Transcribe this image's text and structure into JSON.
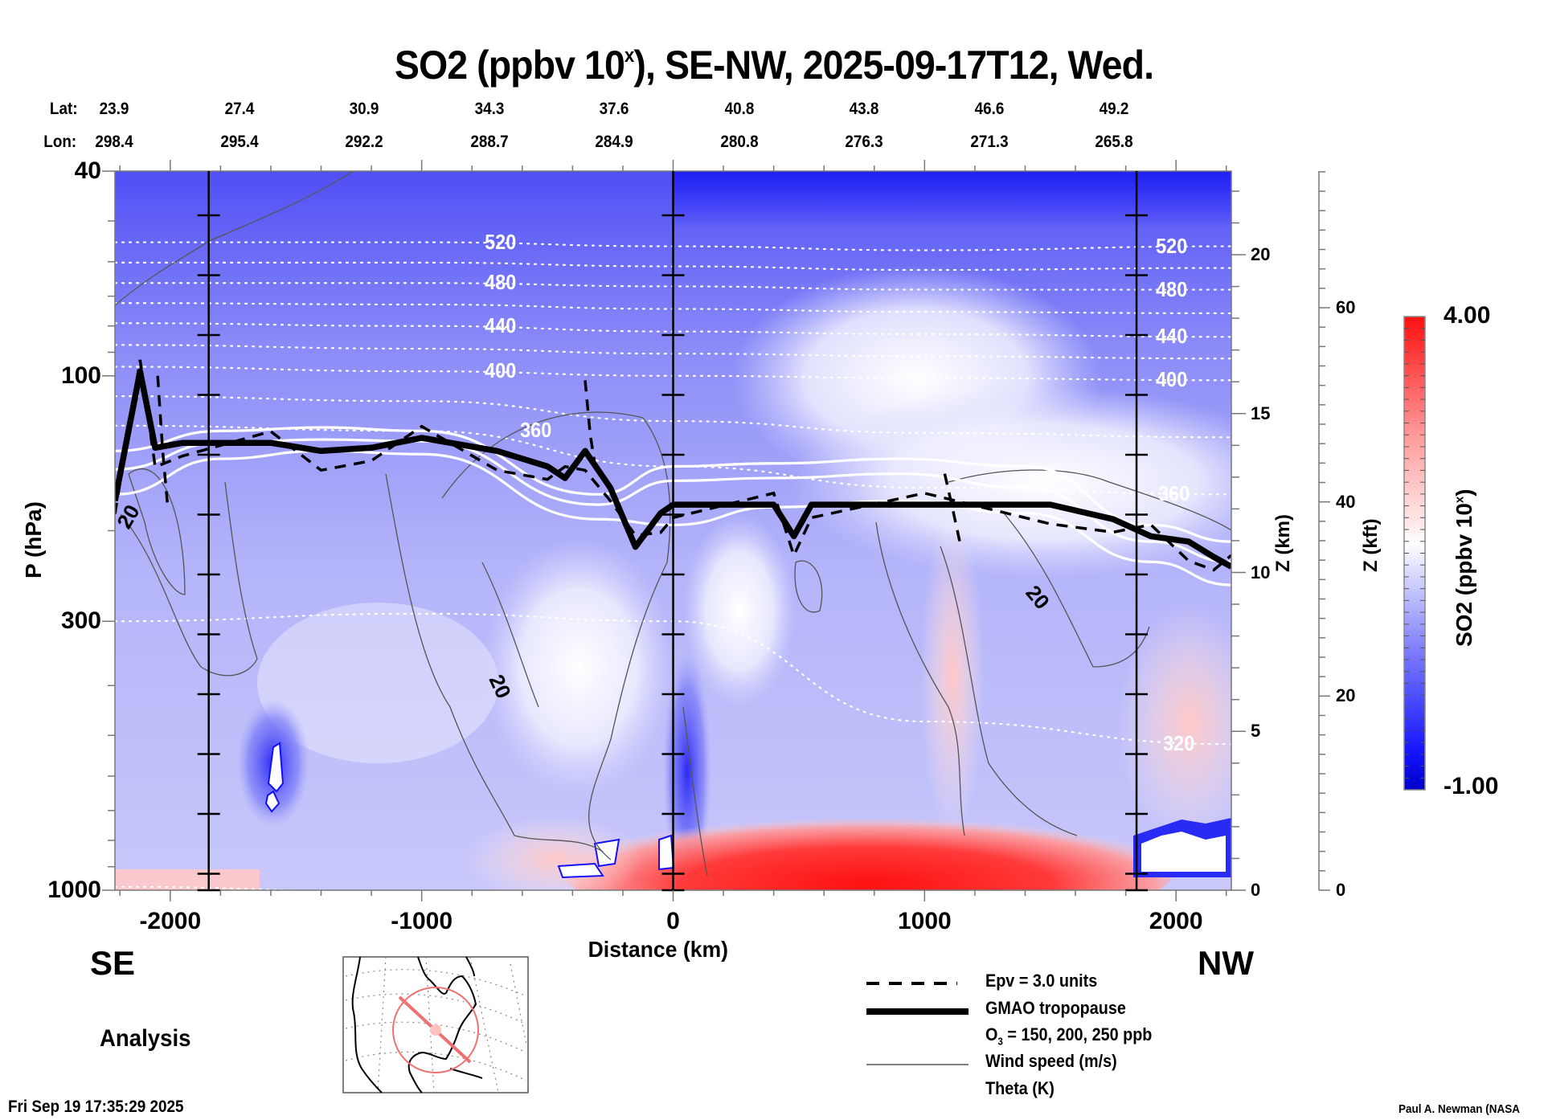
{
  "chart_data": {
    "type": "heatmap",
    "title": "SO2 (ppbv 10",
    "title_sup": "x",
    "title_rest": "), SE-NW, 2025-09-17T12, Wed.",
    "variable": "SO2",
    "units": "ppbv 10^x",
    "section": "SE-NW",
    "valid_time": "2025-09-17T12",
    "weekday": "Wed.",
    "xlabel": "Distance (km)",
    "ylabel": "P (hPa)",
    "y2label": "Z (km)",
    "y3label": "Z (kft)",
    "xlim": [
      -2220,
      2220
    ],
    "ylim": [
      1000,
      40
    ],
    "yscale": "log",
    "x_ticks": [
      -2000,
      -1000,
      0,
      1000,
      2000
    ],
    "x_tick_labels": [
      "-2000",
      "-1000",
      "0",
      "1000",
      "2000"
    ],
    "p_ticks": [
      40,
      100,
      300,
      1000
    ],
    "p_tick_labels": [
      "40",
      "100",
      "300",
      "1000"
    ],
    "z_km_ticks": [
      0,
      5,
      10,
      15,
      20
    ],
    "z_km_labels": [
      "0",
      "5",
      "10",
      "15",
      "20"
    ],
    "z_kft_ticks": [
      0,
      20,
      40,
      60
    ],
    "z_kft_labels": [
      "0",
      "20",
      "40",
      "60"
    ],
    "marker_lines_km": [
      -1847,
      0,
      1843
    ],
    "lat_label": "Lat:",
    "lon_label": "Lon:",
    "latitudes": [
      "23.9",
      "27.4",
      "30.9",
      "34.3",
      "37.6",
      "40.8",
      "43.8",
      "46.6",
      "49.2"
    ],
    "longitudes": [
      "298.4",
      "295.4",
      "292.2",
      "288.7",
      "284.9",
      "280.8",
      "276.3",
      "271.3",
      "265.8"
    ],
    "colorbar": {
      "label": "SO2 (ppbv 10",
      "label_sup": "x",
      "label_end": ")",
      "min": -1.0,
      "max": 4.0,
      "min_label": "-1.00",
      "max_label": "4.00",
      "levels": 40,
      "colors": [
        "#0000cc",
        "#1a1aff",
        "#8a8aff",
        "#d6d6ff",
        "#ffffff",
        "#ffd6d6",
        "#ff8080",
        "#ff1a1a"
      ]
    },
    "field_regions": [
      {
        "desc": "upper stratosphere",
        "x_range": [
          -2220,
          2220
        ],
        "p_range": [
          40,
          70
        ],
        "value": -0.5
      },
      {
        "desc": "lower stratosphere",
        "x_range": [
          -2220,
          2220
        ],
        "p_range": [
          70,
          180
        ],
        "value": -0.2
      },
      {
        "desc": "upper troposphere",
        "x_range": [
          -2220,
          2220
        ],
        "p_range": [
          180,
          850
        ],
        "value": -0.05
      },
      {
        "desc": "boundary layer enhancement",
        "x_range": [
          100,
          1500
        ],
        "p_range": [
          880,
          1000
        ],
        "value": 3.2
      },
      {
        "desc": "surface SE",
        "x_range": [
          -2220,
          -1700
        ],
        "p_range": [
          950,
          1000
        ],
        "value": 0.6
      },
      {
        "desc": "boundary layer deficit NW",
        "x_range": [
          1800,
          2220
        ],
        "p_range": [
          880,
          960
        ],
        "value": -0.9
      }
    ],
    "theta_levels": [
      {
        "label": "520",
        "p": [
          55,
          55,
          56,
          57,
          56
        ]
      },
      {
        "label": "480",
        "p": [
          66,
          66,
          67,
          68,
          68
        ]
      },
      {
        "label": "440",
        "p": [
          79,
          80,
          82,
          83,
          84
        ]
      },
      {
        "label": "400",
        "p": [
          96,
          98,
          100,
          101,
          102
        ]
      },
      {
        "label": "360",
        "p": [
          125,
          128,
          150,
          165,
          170
        ]
      },
      {
        "label": "320",
        "p": [
          300,
          290,
          300,
          470,
          520
        ]
      }
    ],
    "theta_x": [
      -2220,
      -1000,
      0,
      1000,
      2220
    ],
    "tropopause": {
      "x": [
        -2220,
        -2120,
        -2060,
        -1950,
        -1600,
        -1400,
        -1200,
        -1000,
        -700,
        -500,
        -430,
        -350,
        -250,
        -150,
        -50,
        0,
        400,
        480,
        550,
        1000,
        1500,
        1750,
        1900,
        2050,
        2150,
        2220
      ],
      "p": [
        175,
        98,
        138,
        135,
        135,
        140,
        138,
        132,
        140,
        150,
        158,
        140,
        165,
        215,
        185,
        178,
        178,
        205,
        178,
        178,
        178,
        190,
        205,
        210,
        225,
        235
      ]
    },
    "o3_contours_ppb": [
      150,
      200,
      250
    ],
    "o3_lines": [
      {
        "level": 150,
        "p": [
          140,
          128,
          126,
          128,
          170,
          150,
          148,
          145,
          150,
          195,
          210
        ]
      },
      {
        "level": 200,
        "p": [
          152,
          135,
          133,
          134,
          178,
          160,
          158,
          155,
          165,
          210,
          230
        ]
      },
      {
        "level": 250,
        "p": [
          170,
          145,
          140,
          142,
          190,
          195,
          180,
          175,
          185,
          230,
          255
        ]
      }
    ],
    "o3_x": [
      -2220,
      -1800,
      -1400,
      -1000,
      -300,
      0,
      400,
      900,
      1400,
      1900,
      2220
    ],
    "epv_value": 3.0,
    "wind_contour_label": "20",
    "legend": [
      {
        "label": "Epv = 3.0 units",
        "style": "dashed-black"
      },
      {
        "label": "GMAO tropopause",
        "style": "thick-black"
      },
      {
        "label": "O3 = 150, 200, 250 ppb",
        "style": "white"
      },
      {
        "label": "Wind speed (m/s)",
        "style": "thin-gray"
      },
      {
        "label": "Theta (K)",
        "style": "dotted-white"
      }
    ],
    "legend_placement": "bottom-center"
  },
  "labels": {
    "se": "SE",
    "nw": "NW",
    "analysis": "Analysis",
    "date_generated": "Fri Sep 19 17:35:29 2025",
    "credit": "Paul A. Newman (NASA"
  },
  "legend_text": {
    "epv": "Epv = 3.0 units",
    "tropopause": "GMAO tropopause",
    "o3_prefix": "O",
    "o3_sub": "3",
    "o3_rest": " = 150, 200, 250 ppb",
    "wind": "Wind speed (m/s)",
    "theta": "Theta (K)"
  },
  "map_inset": {
    "description": "North America locator map with SE-NW section line",
    "section_color": "#f07070"
  }
}
